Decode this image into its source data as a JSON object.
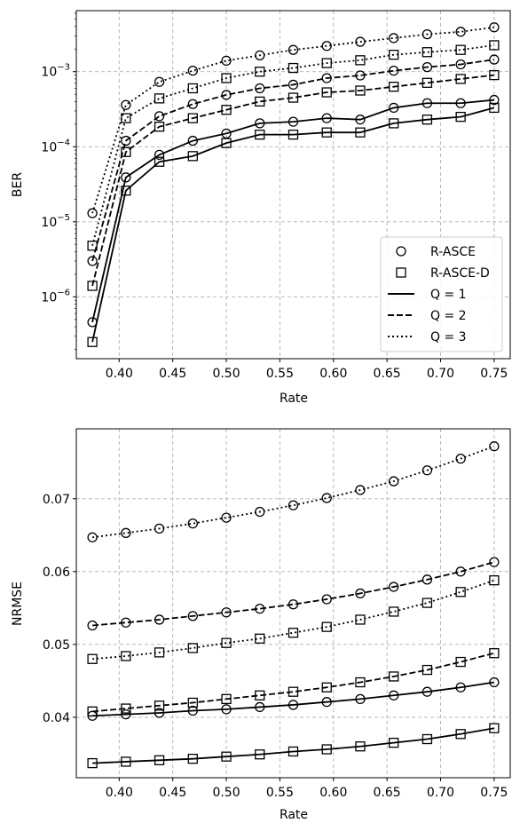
{
  "chart_data": [
    {
      "type": "line",
      "xlabel": "Rate",
      "ylabel": "BER",
      "yscale": "log",
      "xlim": [
        0.36,
        0.765
      ],
      "ylim": [
        1.5e-07,
        0.0065
      ],
      "grid": true,
      "x": [
        0.375,
        0.40625,
        0.4375,
        0.46875,
        0.5,
        0.53125,
        0.5625,
        0.59375,
        0.625,
        0.65625,
        0.6875,
        0.71875,
        0.75
      ],
      "xticks": [
        0.4,
        0.45,
        0.5,
        0.55,
        0.6,
        0.65,
        0.7,
        0.75
      ],
      "xtick_labels": [
        "0.40",
        "0.45",
        "0.50",
        "0.55",
        "0.60",
        "0.65",
        "0.70",
        "0.75"
      ],
      "yticks": [
        1e-06,
        1e-05,
        0.0001,
        0.001
      ],
      "ytick_labels": [
        {
          "base": "10",
          "exp": "−6"
        },
        {
          "base": "10",
          "exp": "−5"
        },
        {
          "base": "10",
          "exp": "−4"
        },
        {
          "base": "10",
          "exp": "−3"
        }
      ],
      "legend": {
        "position": "lower-right",
        "entries": [
          {
            "label": "R-ASCE",
            "kind": "marker",
            "marker": "circle"
          },
          {
            "label": "R-ASCE-D",
            "kind": "marker",
            "marker": "square"
          },
          {
            "label": "Q = 1",
            "kind": "line",
            "style": "solid"
          },
          {
            "label": "Q = 2",
            "kind": "line",
            "style": "dashed"
          },
          {
            "label": "Q = 3",
            "kind": "line",
            "style": "dotted"
          }
        ]
      },
      "series": [
        {
          "method": "R-ASCE",
          "Q": 1,
          "style": "solid",
          "marker": "circle",
          "values": [
            4.6e-07,
            3.9e-05,
            7.8e-05,
            0.00012,
            0.00015,
            0.000205,
            0.000215,
            0.00024,
            0.00023,
            0.00033,
            0.00038,
            0.00038,
            0.00042
          ]
        },
        {
          "method": "R-ASCE-D",
          "Q": 1,
          "style": "solid",
          "marker": "square",
          "values": [
            2.5e-07,
            2.6e-05,
            6.3e-05,
            7.5e-05,
            0.000112,
            0.000145,
            0.000145,
            0.000155,
            0.000155,
            0.000205,
            0.00023,
            0.00025,
            0.00033
          ]
        },
        {
          "method": "R-ASCE",
          "Q": 2,
          "style": "dashed",
          "marker": "circle",
          "values": [
            3e-06,
            0.00012,
            0.000255,
            0.00037,
            0.00049,
            0.0006,
            0.00067,
            0.00082,
            0.00089,
            0.00103,
            0.00115,
            0.00125,
            0.00145
          ]
        },
        {
          "method": "R-ASCE-D",
          "Q": 2,
          "style": "dashed",
          "marker": "square",
          "values": [
            1.4e-06,
            8.5e-05,
            0.000185,
            0.00024,
            0.00031,
            0.0004,
            0.00045,
            0.00053,
            0.00056,
            0.00063,
            0.00071,
            0.0008,
            0.0009
          ]
        },
        {
          "method": "R-ASCE",
          "Q": 3,
          "style": "dotted",
          "marker": "circle",
          "values": [
            1.3e-05,
            0.00036,
            0.00073,
            0.00103,
            0.0014,
            0.00165,
            0.00195,
            0.0022,
            0.0025,
            0.0028,
            0.00315,
            0.0034,
            0.0039
          ]
        },
        {
          "method": "R-ASCE-D",
          "Q": 3,
          "style": "dotted",
          "marker": "square",
          "values": [
            4.8e-06,
            0.00024,
            0.00044,
            0.0006,
            0.00082,
            0.001,
            0.00112,
            0.0013,
            0.00142,
            0.00168,
            0.00182,
            0.00195,
            0.00225
          ]
        }
      ]
    },
    {
      "type": "line",
      "xlabel": "Rate",
      "ylabel": "NRMSE",
      "yscale": "linear",
      "xlim": [
        0.36,
        0.765
      ],
      "ylim": [
        0.0317,
        0.0796
      ],
      "grid": true,
      "x": [
        0.375,
        0.40625,
        0.4375,
        0.46875,
        0.5,
        0.53125,
        0.5625,
        0.59375,
        0.625,
        0.65625,
        0.6875,
        0.71875,
        0.75
      ],
      "xticks": [
        0.4,
        0.45,
        0.5,
        0.55,
        0.6,
        0.65,
        0.7,
        0.75
      ],
      "xtick_labels": [
        "0.40",
        "0.45",
        "0.50",
        "0.55",
        "0.60",
        "0.65",
        "0.70",
        "0.75"
      ],
      "yticks": [
        0.04,
        0.05,
        0.06,
        0.07
      ],
      "ytick_labels": [
        "0.04",
        "0.05",
        "0.06",
        "0.07"
      ],
      "series": [
        {
          "method": "R-ASCE",
          "Q": 1,
          "style": "solid",
          "marker": "circle",
          "values": [
            0.0402,
            0.0404,
            0.0406,
            0.0409,
            0.0411,
            0.0414,
            0.0417,
            0.0421,
            0.0425,
            0.043,
            0.0435,
            0.0441,
            0.0448
          ]
        },
        {
          "method": "R-ASCE-D",
          "Q": 1,
          "style": "solid",
          "marker": "square",
          "values": [
            0.0337,
            0.0339,
            0.0341,
            0.0343,
            0.0346,
            0.0349,
            0.0353,
            0.0356,
            0.036,
            0.0365,
            0.037,
            0.0377,
            0.0385
          ]
        },
        {
          "method": "R-ASCE",
          "Q": 2,
          "style": "dashed",
          "marker": "circle",
          "values": [
            0.0526,
            0.053,
            0.0534,
            0.0539,
            0.0544,
            0.0549,
            0.0555,
            0.0562,
            0.057,
            0.0579,
            0.0589,
            0.06,
            0.0613
          ]
        },
        {
          "method": "R-ASCE-D",
          "Q": 2,
          "style": "dashed",
          "marker": "square",
          "values": [
            0.0408,
            0.0412,
            0.0416,
            0.042,
            0.0425,
            0.043,
            0.0435,
            0.0441,
            0.0448,
            0.0456,
            0.0465,
            0.0476,
            0.0488
          ]
        },
        {
          "method": "R-ASCE",
          "Q": 3,
          "style": "dotted",
          "marker": "circle",
          "values": [
            0.0647,
            0.0653,
            0.0659,
            0.0666,
            0.0674,
            0.0682,
            0.0691,
            0.0701,
            0.0712,
            0.0724,
            0.0739,
            0.0755,
            0.0772
          ]
        },
        {
          "method": "R-ASCE-D",
          "Q": 3,
          "style": "dotted",
          "marker": "square",
          "values": [
            0.048,
            0.0484,
            0.0489,
            0.0495,
            0.0502,
            0.0508,
            0.0516,
            0.0524,
            0.0534,
            0.0545,
            0.0557,
            0.0572,
            0.0588
          ]
        }
      ]
    }
  ]
}
